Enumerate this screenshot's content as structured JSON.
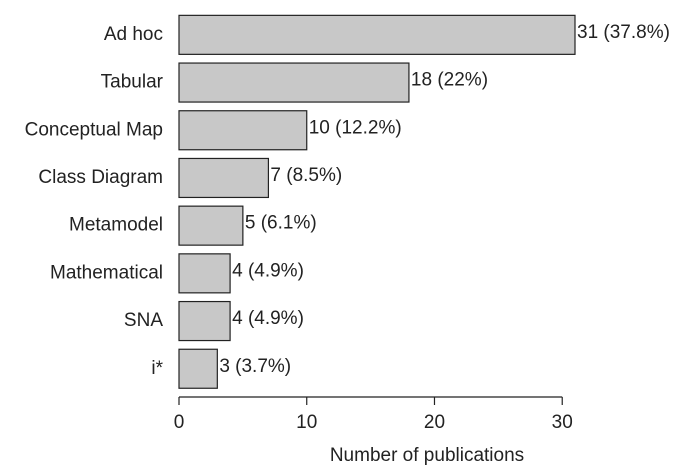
{
  "chart_data": {
    "type": "bar",
    "orientation": "horizontal",
    "categories": [
      "Ad hoc",
      "Tabular",
      "Conceptual Map",
      "Class Diagram",
      "Metamodel",
      "Mathematical",
      "SNA",
      "i*"
    ],
    "values": [
      31,
      18,
      10,
      7,
      5,
      4,
      4,
      3
    ],
    "value_labels": [
      "31 (37.8%)",
      "18 (22%)",
      "10 (12.2%)",
      "7 (8.5%)",
      "5 (6.1%)",
      "4 (4.9%)",
      "4 (4.9%)",
      "3 (3.7%)"
    ],
    "color": "#c8c8c8",
    "xlabel": "Number of publications",
    "xlim": [
      0,
      31
    ],
    "xticks": [
      0,
      10,
      20,
      30
    ],
    "grid": false
  }
}
